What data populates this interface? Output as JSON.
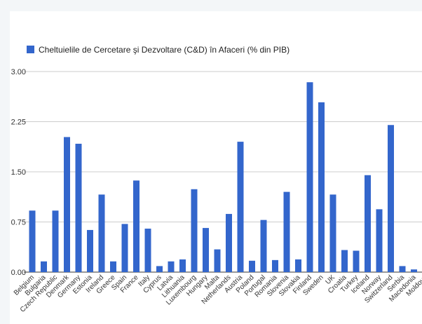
{
  "chart_data": {
    "type": "bar",
    "legend": "Cheltuielile de Cercetare şi Dezvoltare (C&D) în Afaceri (% din PIB)",
    "legend_position": "top-left",
    "grid": true,
    "ylim": [
      0,
      3
    ],
    "yticks": [
      "0.00",
      "0.75",
      "1.50",
      "2.25",
      "3.00"
    ],
    "ytick_values": [
      0,
      0.75,
      1.5,
      2.25,
      3.0
    ],
    "categories": [
      "Belgium",
      "Bulgaria",
      "Czech Republic",
      "Denmark",
      "Germany",
      "Estonia",
      "Ireland",
      "Greece",
      "Spain",
      "France",
      "Italy",
      "Cyprus",
      "Latvia",
      "Lithuania",
      "Luxembourg",
      "Hungary",
      "Malta",
      "Netherlands",
      "Austria",
      "Poland",
      "Portugal",
      "Romania",
      "Slovenia",
      "Slovakia",
      "Finland",
      "Sweden",
      "UK",
      "Croatia",
      "Turkey",
      "Iceland",
      "Norway",
      "Switzerland",
      "Serbia",
      "Macedonia",
      "Moldova"
    ],
    "series": [
      {
        "name": "Cheltuielile de Cercetare şi Dezvoltare (C&D) în Afaceri (% din PIB)",
        "color": "#3366cc",
        "values": [
          0.92,
          0.16,
          0.92,
          2.02,
          1.92,
          0.63,
          1.16,
          0.16,
          0.72,
          1.37,
          0.65,
          0.09,
          0.16,
          0.19,
          1.24,
          0.66,
          0.34,
          0.87,
          1.95,
          0.17,
          0.78,
          0.18,
          1.2,
          0.19,
          2.84,
          2.54,
          1.16,
          0.33,
          0.32,
          1.45,
          0.94,
          2.2,
          0.09,
          0.04,
          0.03
        ]
      }
    ]
  }
}
